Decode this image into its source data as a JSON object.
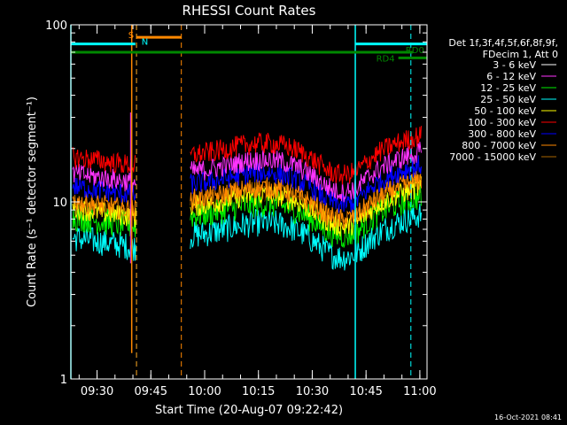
{
  "chart_data": {
    "type": "line",
    "title": "RHESSI Count Rates",
    "xlabel": "Start Time (20-Aug-07 09:22:42)",
    "ylabel": "Count Rate (s⁻¹ detector segment⁻¹)",
    "y_scale": "log",
    "ylim": [
      1,
      100
    ],
    "xlim": [
      "09:22:42",
      "11:02:00"
    ],
    "x_ticks": [
      "09:30",
      "09:45",
      "10:00",
      "10:15",
      "10:30",
      "10:45",
      "11:00"
    ],
    "y_ticks": [
      "1",
      "10",
      "100"
    ],
    "timestamp": "16-Oct-2021 08:41",
    "legend": {
      "position": "right",
      "header": [
        "Det 1f,3f,4f,5f,6f,8f,9f,",
        "FDecim 1, Att 0"
      ]
    },
    "series": [
      {
        "name": "3 - 6 keV",
        "color": "#000000",
        "base": 8.6
      },
      {
        "name": "6 - 12 keV",
        "color": "#ff33ff",
        "base": 14.5
      },
      {
        "name": "12 - 25 keV",
        "color": "#00ee00",
        "base": 8.2
      },
      {
        "name": "25 - 50 keV",
        "color": "#00ffff",
        "base": 6.3
      },
      {
        "name": "50 - 100 keV",
        "color": "#ffff00",
        "base": 9.2
      },
      {
        "name": "100 - 300 keV",
        "color": "#ff0000",
        "base": 18.0
      },
      {
        "name": "300 - 800 keV",
        "color": "#0000ff",
        "base": 12.3
      },
      {
        "name": "800 - 7000 keV",
        "color": "#ff8800",
        "base": 10.1
      },
      {
        "name": "7000 - 15000 keV",
        "color": "#aa6600",
        "base": 9.6
      }
    ],
    "annotations": {
      "S": {
        "label": "S",
        "color": "#ff8800",
        "level": 85,
        "from": "09:41:00",
        "to": "09:53:30"
      },
      "N": {
        "label": "N",
        "color": "#00ffff",
        "level": 78,
        "from": "09:22:42",
        "to": "09:40:40"
      },
      "N2": {
        "level": 78,
        "from": "10:42:00",
        "to": "11:02:00"
      },
      "RD0": {
        "label": "RD0",
        "color": "#008800",
        "level": 70,
        "from": "09:22:42",
        "to": "10:58:00"
      },
      "RD4": {
        "label": "RD4",
        "color": "#008800",
        "level": 65,
        "from": "10:54:00",
        "to": "11:02:00"
      },
      "solid_cyan": [
        "09:22:42",
        "10:42:00"
      ],
      "dashed_cyan": [
        "09:41:00",
        "10:57:30"
      ],
      "dashed_orange": [
        "09:41:00",
        "09:53:30"
      ],
      "solid_orange": [
        "09:39:40"
      ],
      "gap": [
        "09:41:00",
        "09:56:00"
      ]
    }
  }
}
